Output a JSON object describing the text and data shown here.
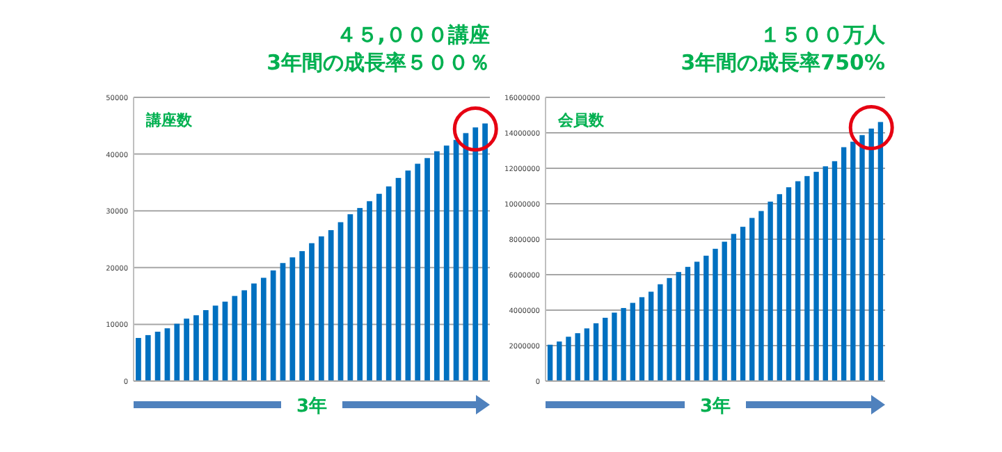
{
  "chart_data": [
    {
      "type": "bar",
      "title": "４５,０００講座",
      "subtitle": "3年間の成長率５００％",
      "annotations": [
        "講座数"
      ],
      "xlabel": "3年",
      "categories": [
        null,
        null,
        null,
        null,
        null,
        null,
        null,
        null,
        null,
        null,
        null,
        null,
        null,
        null,
        null,
        null,
        null,
        null,
        null,
        null,
        null,
        null,
        null,
        null,
        null,
        null,
        null,
        null,
        null,
        null,
        null,
        null,
        null,
        null,
        null,
        null,
        null
      ],
      "values": [
        7600,
        8100,
        8700,
        9300,
        10100,
        11000,
        11600,
        12500,
        13300,
        14000,
        15000,
        16000,
        17200,
        18200,
        19500,
        20800,
        21800,
        22900,
        24300,
        25500,
        26600,
        28000,
        29400,
        30500,
        31700,
        33000,
        34300,
        35800,
        37100,
        38300,
        39300,
        40500,
        41500,
        42500,
        43700,
        44700,
        45400
      ],
      "color": "#0070c0",
      "ylim": [
        0,
        50000
      ],
      "yticks": [
        0,
        10000,
        20000,
        30000,
        40000,
        50000
      ],
      "grid": "y",
      "tick_labels": "y"
    },
    {
      "type": "bar",
      "title": "１５００万人",
      "subtitle": "3年間の成長率750%",
      "annotations": [
        "会員数"
      ],
      "xlabel": "3年",
      "categories": [
        null,
        null,
        null,
        null,
        null,
        null,
        null,
        null,
        null,
        null,
        null,
        null,
        null,
        null,
        null,
        null,
        null,
        null,
        null,
        null,
        null,
        null,
        null,
        null,
        null,
        null,
        null,
        null,
        null,
        null,
        null,
        null,
        null,
        null,
        null,
        null,
        null
      ],
      "values": [
        2050000,
        2230000,
        2500000,
        2700000,
        2970000,
        3260000,
        3570000,
        3860000,
        4120000,
        4410000,
        4730000,
        5040000,
        5460000,
        5810000,
        6150000,
        6440000,
        6730000,
        7070000,
        7460000,
        7860000,
        8300000,
        8700000,
        9200000,
        9590000,
        10120000,
        10540000,
        10930000,
        11270000,
        11560000,
        11800000,
        12110000,
        12400000,
        13190000,
        13500000,
        13870000,
        14240000,
        14610000
      ],
      "color": "#0070c0",
      "ylim": [
        0,
        16000000
      ],
      "yticks": [
        0,
        2000000,
        4000000,
        6000000,
        8000000,
        10000000,
        12000000,
        14000000,
        16000000
      ],
      "grid": "y",
      "tick_labels": "y"
    }
  ]
}
